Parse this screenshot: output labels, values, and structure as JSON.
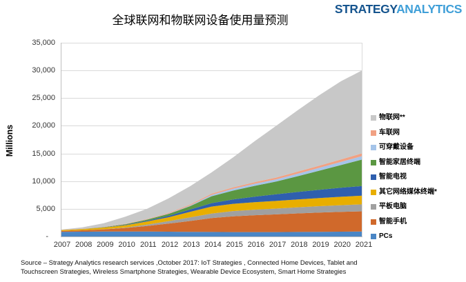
{
  "logo": {
    "part1": "STRATEGY",
    "part2": "ANALYTICS"
  },
  "source": {
    "line1": "Source – Strategy Analytics research services ,October 2017: IoT Strategies , Connected Home Devices, Tablet and",
    "line2": "Touchscreen Strategies, Wireless Smartphone Strategies, Wearable Device Ecosystem,  Smart Home Strategies"
  },
  "chart_data": {
    "type": "area",
    "stacked": true,
    "title": "全球联网和物联网设备使用量预测",
    "ylabel": "Millions",
    "ylim": [
      0,
      35000
    ],
    "grid": true,
    "legend_position": "right",
    "x": [
      "2007",
      "2008",
      "2009",
      "2010",
      "2011",
      "2012",
      "2013",
      "2014",
      "2015",
      "2016",
      "2017",
      "2018",
      "2019",
      "2020",
      "2021"
    ],
    "ytick_labels_top_to_bottom": [
      "35,000",
      "30,000",
      "25,000",
      "20,000",
      "15,000",
      "10,000",
      "5,000",
      "-"
    ],
    "ytick_values_top_to_bottom": [
      35000,
      30000,
      25000,
      20000,
      15000,
      10000,
      5000,
      0
    ],
    "series_bottom_to_top": [
      {
        "name": "PCs",
        "color": "#4a86c5",
        "values": [
          850,
          875,
          900,
          900,
          900,
          875,
          850,
          825,
          800,
          800,
          800,
          825,
          850,
          875,
          900
        ]
      },
      {
        "name": "智能手机",
        "color": "#d0692b",
        "values": [
          150,
          250,
          400,
          650,
          1000,
          1450,
          1950,
          2500,
          2850,
          3050,
          3200,
          3350,
          3475,
          3575,
          3650
        ]
      },
      {
        "name": "平板电脑",
        "color": "#a0a0a0",
        "values": [
          0,
          0,
          15,
          75,
          250,
          450,
          650,
          825,
          950,
          1000,
          1050,
          1100,
          1150,
          1200,
          1250
        ]
      },
      {
        "name": "其它网络媒体终端*",
        "color": "#e8ae00",
        "values": [
          150,
          200,
          300,
          400,
          550,
          700,
          1000,
          1250,
          1300,
          1350,
          1375,
          1425,
          1475,
          1525,
          1575
        ]
      },
      {
        "name": "智能电视",
        "color": "#2f5fae",
        "values": [
          0,
          10,
          25,
          75,
          150,
          250,
          425,
          625,
          800,
          1000,
          1200,
          1350,
          1500,
          1625,
          1750
        ]
      },
      {
        "name": "智能家居终端",
        "color": "#5b9742",
        "values": [
          10,
          25,
          50,
          100,
          200,
          350,
          600,
          1250,
          1600,
          1950,
          2300,
          2850,
          3450,
          4100,
          4800
        ]
      },
      {
        "name": "可穿戴设备",
        "color": "#a5c4e9",
        "values": [
          0,
          0,
          5,
          10,
          25,
          60,
          120,
          250,
          325,
          375,
          400,
          450,
          500,
          560,
          625
        ]
      },
      {
        "name": "车联网",
        "color": "#f1a183",
        "values": [
          20,
          30,
          45,
          65,
          90,
          120,
          160,
          215,
          250,
          290,
          330,
          370,
          410,
          455,
          500
        ]
      },
      {
        "name": "物联网**",
        "color": "#c8c8c8",
        "values": [
          70,
          270,
          660,
          1305,
          1835,
          2620,
          3325,
          3840,
          5415,
          7395,
          9345,
          11110,
          12730,
          14125,
          14990
        ]
      }
    ],
    "colors": {
      "gridline": "#d9d9d9",
      "axis": "#bfbfbf",
      "logo_dark": "#15548e",
      "logo_light": "#3f9fd8"
    },
    "geometry_note": "totals (millions): 2007=1250, 2014=11580, 2017=20000, 2021=30040"
  }
}
